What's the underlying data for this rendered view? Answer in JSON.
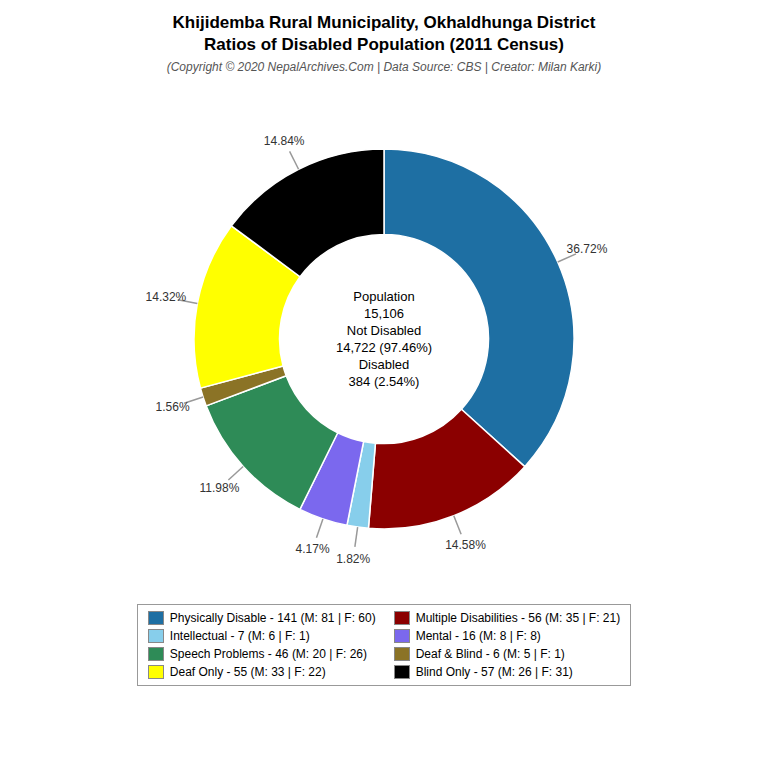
{
  "chart_data": {
    "type": "pie",
    "title": [
      "Khijidemba Rural Municipality, Okhaldhunga District",
      "Ratios of Disabled Population (2011 Census)"
    ],
    "subtitle": "(Copyright © 2020 NepalArchives.Com | Data Source: CBS | Creator: Milan Karki)",
    "categories": [
      "Physically Disable - 141 (M: 81 | F: 60)",
      "Multiple Disabilities - 56 (M: 35 | F: 21)",
      "Intellectual - 7 (M: 6 | F: 1)",
      "Mental - 16 (M: 8 | F: 8)",
      "Speech Problems - 46 (M: 20 | F: 26)",
      "Deaf & Blind - 6 (M: 5 | F: 1)",
      "Deaf Only - 55 (M: 33 | F: 22)",
      "Blind Only - 57 (M: 26 | F: 31)"
    ],
    "values": [
      36.72,
      14.58,
      1.82,
      4.17,
      11.98,
      1.56,
      14.32,
      14.84
    ],
    "value_labels": [
      "36.72%",
      "14.58%",
      "1.82%",
      "4.17%",
      "11.98%",
      "1.56%",
      "14.32%",
      "14.84%"
    ],
    "colors": [
      "#1e6fa3",
      "#8b0000",
      "#87ceeb",
      "#7b68ee",
      "#2e8b57",
      "#8b7326",
      "#ffff00",
      "#000000"
    ],
    "data_labels": true,
    "legend": "bottom",
    "annotations": [
      "Population",
      "15,106",
      "Not Disabled",
      "14,722 (97.46%)",
      "Disabled",
      "384 (2.54%)"
    ]
  }
}
